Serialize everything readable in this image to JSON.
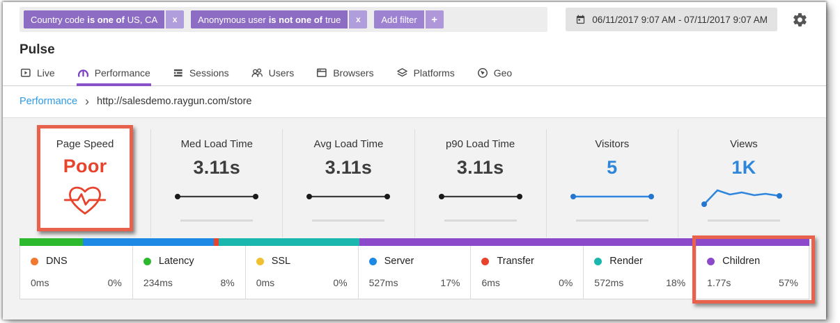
{
  "filters": {
    "chips": [
      {
        "field": "Country code",
        "op": "is one of",
        "value": "US, CA"
      },
      {
        "field": "Anonymous user",
        "op": "is not one of",
        "value": "true"
      }
    ],
    "remove_icon": "x",
    "add_label": "Add filter",
    "add_icon": "+"
  },
  "date_range": "06/11/2017 9:07 AM - 07/11/2017 9:07 AM",
  "page": {
    "title": "Pulse"
  },
  "tabs": [
    {
      "label": "Live"
    },
    {
      "label": "Performance"
    },
    {
      "label": "Sessions"
    },
    {
      "label": "Users"
    },
    {
      "label": "Browsers"
    },
    {
      "label": "Platforms"
    },
    {
      "label": "Geo"
    }
  ],
  "breadcrumb": {
    "section": "Performance",
    "separator": "›",
    "path": "http://salesdemo.raygun.com/store"
  },
  "metrics": [
    {
      "label": "Page Speed",
      "value": "Poor"
    },
    {
      "label": "Med Load Time",
      "value": "3.11s"
    },
    {
      "label": "Avg Load Time",
      "value": "3.11s"
    },
    {
      "label": "p90 Load Time",
      "value": "3.11s"
    },
    {
      "label": "Visitors",
      "value": "5"
    },
    {
      "label": "Views",
      "value": "1K"
    }
  ],
  "timing": {
    "items": [
      {
        "name": "DNS",
        "time": "0ms",
        "pct": "0%",
        "color": "#f07830",
        "bar_pct": 0
      },
      {
        "name": "Latency",
        "time": "234ms",
        "pct": "8%",
        "color": "#2db92d",
        "bar_pct": 8
      },
      {
        "name": "SSL",
        "time": "0ms",
        "pct": "0%",
        "color": "#f0c030",
        "bar_pct": 0
      },
      {
        "name": "Server",
        "time": "527ms",
        "pct": "17%",
        "color": "#1e88e5",
        "bar_pct": 16.6
      },
      {
        "name": "Transfer",
        "time": "6ms",
        "pct": "0%",
        "color": "#e8432c",
        "bar_pct": 0.6
      },
      {
        "name": "Render",
        "time": "572ms",
        "pct": "18%",
        "color": "#19b7ae",
        "bar_pct": 17.8
      },
      {
        "name": "Children",
        "time": "1.77s",
        "pct": "57%",
        "color": "#8c49c9",
        "bar_pct": 57
      }
    ]
  },
  "annotation_color": "#e8614d"
}
